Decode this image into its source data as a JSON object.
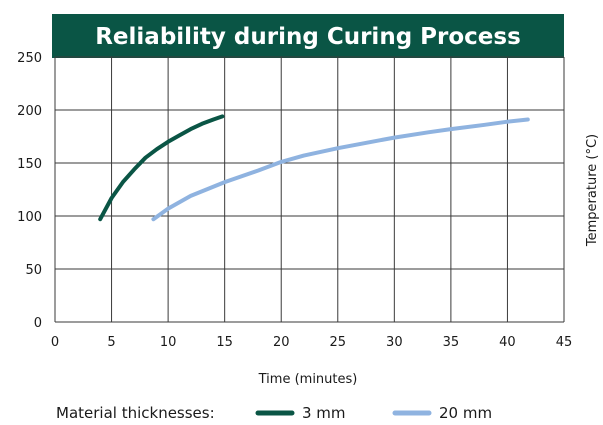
{
  "colors": {
    "banner": "#0a5545",
    "grid": "#3a3a3a",
    "series_3mm": "#0a5545",
    "series_20mm": "#8fb3e0"
  },
  "chart_data": {
    "type": "line",
    "title": "Reliability during Curing Process",
    "xlabel": "Time (minutes)",
    "ylabel": "Temperature (°C)",
    "xlim": [
      0,
      45
    ],
    "ylim": [
      0,
      250
    ],
    "xticks": [
      0,
      5,
      10,
      15,
      20,
      25,
      30,
      35,
      40,
      45
    ],
    "yticks": [
      0,
      50,
      100,
      150,
      200,
      250
    ],
    "grid": true,
    "legend": {
      "title": "Material thicknesses:",
      "position": "bottom"
    },
    "series": [
      {
        "name": "3 mm",
        "color": "#0a5545",
        "x": [
          4.0,
          5.0,
          6.0,
          7.0,
          8.0,
          9.0,
          10.0,
          11.0,
          12.0,
          13.0,
          14.0,
          14.8
        ],
        "y": [
          97,
          117,
          132,
          144,
          155,
          163,
          170,
          176,
          182,
          187,
          191,
          194
        ]
      },
      {
        "name": "20 mm",
        "color": "#8fb3e0",
        "x": [
          8.7,
          10,
          12,
          15,
          18,
          20,
          22,
          25,
          28,
          30,
          33,
          35,
          38,
          40,
          41.8
        ],
        "y": [
          97,
          107,
          119,
          132,
          143,
          151,
          157,
          164,
          170,
          174,
          179,
          182,
          186,
          189,
          191
        ]
      }
    ]
  }
}
